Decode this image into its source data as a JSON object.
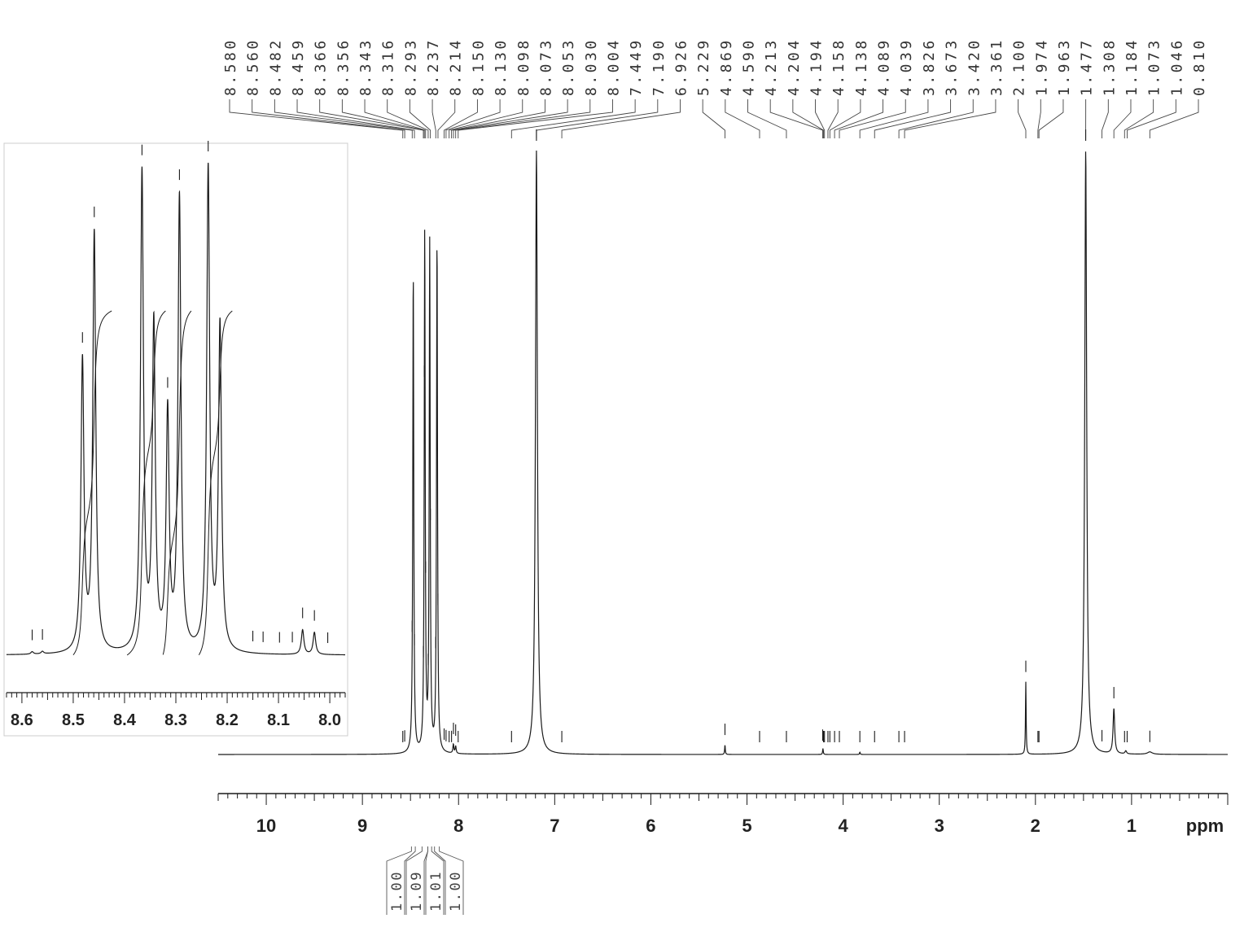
{
  "chart_data": {
    "type": "line",
    "title": "",
    "xlabel": "ppm",
    "ylabel": "",
    "x_reversed": true,
    "colors": {
      "trace": "#1a1a1a",
      "background": "#ffffff",
      "frame": "#bbbbbb"
    },
    "main": {
      "xlim": [
        10.5,
        0.0
      ],
      "ticks": [
        {
          "value": 10,
          "label": "10"
        },
        {
          "value": 9,
          "label": "9"
        },
        {
          "value": 8,
          "label": "8"
        },
        {
          "value": 7,
          "label": "7"
        },
        {
          "value": 6,
          "label": "6"
        },
        {
          "value": 5,
          "label": "5"
        },
        {
          "value": 4,
          "label": "4"
        },
        {
          "value": 3,
          "label": "3"
        },
        {
          "value": 2,
          "label": "2"
        },
        {
          "value": 1,
          "label": "1"
        }
      ],
      "peaks": [
        {
          "ppm": 8.471,
          "height": 0.8,
          "width": 0.006
        },
        {
          "ppm": 8.352,
          "height": 0.86,
          "width": 0.006
        },
        {
          "ppm": 8.3,
          "height": 0.84,
          "width": 0.006
        },
        {
          "ppm": 8.224,
          "height": 0.85,
          "width": 0.006
        },
        {
          "ppm": 8.054,
          "height": 0.015,
          "width": 0.006
        },
        {
          "ppm": 8.03,
          "height": 0.012,
          "width": 0.006
        },
        {
          "ppm": 7.19,
          "height": 1.0,
          "width": 0.012
        },
        {
          "ppm": 5.229,
          "height": 0.016,
          "width": 0.004
        },
        {
          "ppm": 4.21,
          "height": 0.01,
          "width": 0.004
        },
        {
          "ppm": 3.826,
          "height": 0.004,
          "width": 0.004
        },
        {
          "ppm": 2.1,
          "height": 0.12,
          "width": 0.004
        },
        {
          "ppm": 1.477,
          "height": 1.0,
          "width": 0.012
        },
        {
          "ppm": 1.184,
          "height": 0.075,
          "width": 0.01
        },
        {
          "ppm": 1.06,
          "height": 0.005,
          "width": 0.01
        },
        {
          "ppm": 0.81,
          "height": 0.004,
          "width": 0.03
        }
      ],
      "peak_picks": [
        8.58,
        8.56,
        8.482,
        8.459,
        8.366,
        8.356,
        8.343,
        8.316,
        8.293,
        8.237,
        8.214,
        8.15,
        8.13,
        8.098,
        8.073,
        8.053,
        8.03,
        8.004,
        7.449,
        7.19,
        6.926,
        5.229,
        4.869,
        4.59,
        4.213,
        4.204,
        4.194,
        4.158,
        4.138,
        4.089,
        4.039,
        3.826,
        3.673,
        3.42,
        3.361,
        2.1,
        1.974,
        1.963,
        1.477,
        1.308,
        1.184,
        1.073,
        1.046,
        0.81
      ],
      "peak_labels": [
        "8.580",
        "8.560",
        "8.482",
        "8.459",
        "8.366",
        "8.356",
        "8.343",
        "8.316",
        "8.293",
        "8.237",
        "8.214",
        "8.150",
        "8.130",
        "8.098",
        "8.073",
        "8.053",
        "8.030",
        "8.004",
        "7.449",
        "7.190",
        "6.926",
        "5.229",
        "4.869",
        "4.590",
        "4.213",
        "4.204",
        "4.194",
        "4.158",
        "4.138",
        "4.089",
        "4.039",
        "3.826",
        "3.673",
        "3.420",
        "3.361",
        "2.100",
        "1.974",
        "1.963",
        "1.477",
        "1.308",
        "1.184",
        "1.073",
        "1.046",
        "0.810"
      ],
      "integrals": [
        {
          "label": "1.00",
          "from": 8.49,
          "to": 8.45
        },
        {
          "label": "1.09",
          "from": 8.38,
          "to": 8.32
        },
        {
          "label": "1.01",
          "from": 8.32,
          "to": 8.28
        },
        {
          "label": "1.00",
          "from": 8.25,
          "to": 8.2
        }
      ]
    },
    "inset": {
      "xlim": [
        8.63,
        7.97
      ],
      "ticks": [
        {
          "value": 8.6,
          "label": "8.6"
        },
        {
          "value": 8.5,
          "label": "8.5"
        },
        {
          "value": 8.4,
          "label": "8.4"
        },
        {
          "value": 8.3,
          "label": "8.3"
        },
        {
          "value": 8.2,
          "label": "8.2"
        },
        {
          "value": 8.1,
          "label": "8.1"
        },
        {
          "value": 8.0,
          "label": "8.0"
        }
      ],
      "peaks": [
        {
          "ppm": 8.482,
          "height": 0.59,
          "width": 0.0035
        },
        {
          "ppm": 8.459,
          "height": 0.85,
          "width": 0.0035
        },
        {
          "ppm": 8.366,
          "height": 0.97,
          "width": 0.0035
        },
        {
          "ppm": 8.343,
          "height": 0.66,
          "width": 0.0035
        },
        {
          "ppm": 8.316,
          "height": 0.48,
          "width": 0.0035
        },
        {
          "ppm": 8.293,
          "height": 0.92,
          "width": 0.0035
        },
        {
          "ppm": 8.237,
          "height": 0.98,
          "width": 0.0035
        },
        {
          "ppm": 8.214,
          "height": 0.66,
          "width": 0.0035
        },
        {
          "ppm": 8.053,
          "height": 0.05,
          "width": 0.003
        },
        {
          "ppm": 8.03,
          "height": 0.045,
          "width": 0.003
        },
        {
          "ppm": 8.58,
          "height": 0.005,
          "width": 0.003
        },
        {
          "ppm": 8.56,
          "height": 0.005,
          "width": 0.003
        }
      ],
      "peak_picks": [
        8.58,
        8.56,
        8.482,
        8.459,
        8.366,
        8.316,
        8.293,
        8.237,
        8.15,
        8.13,
        8.098,
        8.073,
        8.053,
        8.03,
        8.004
      ]
    }
  }
}
